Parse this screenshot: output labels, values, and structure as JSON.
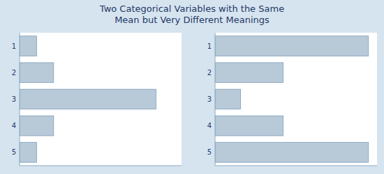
{
  "chart_data": [
    {
      "type": "bar",
      "orientation": "horizontal",
      "title": "Two Categorical Variables with the Same\nMean but Very Different Meanings",
      "categories": [
        "1",
        "2",
        "3",
        "4",
        "5"
      ],
      "values": [
        1,
        2,
        8,
        2,
        1
      ],
      "color": "#B8C9D8",
      "xlim": [
        0,
        9.5
      ],
      "tick_labels": "y"
    },
    {
      "type": "bar",
      "orientation": "horizontal",
      "categories": [
        "1",
        "2",
        "3",
        "4",
        "5"
      ],
      "values": [
        9,
        4,
        1.5,
        4,
        9
      ],
      "color": "#B8C9D8",
      "xlim": [
        0,
        9.5
      ],
      "tick_labels": "y"
    }
  ]
}
